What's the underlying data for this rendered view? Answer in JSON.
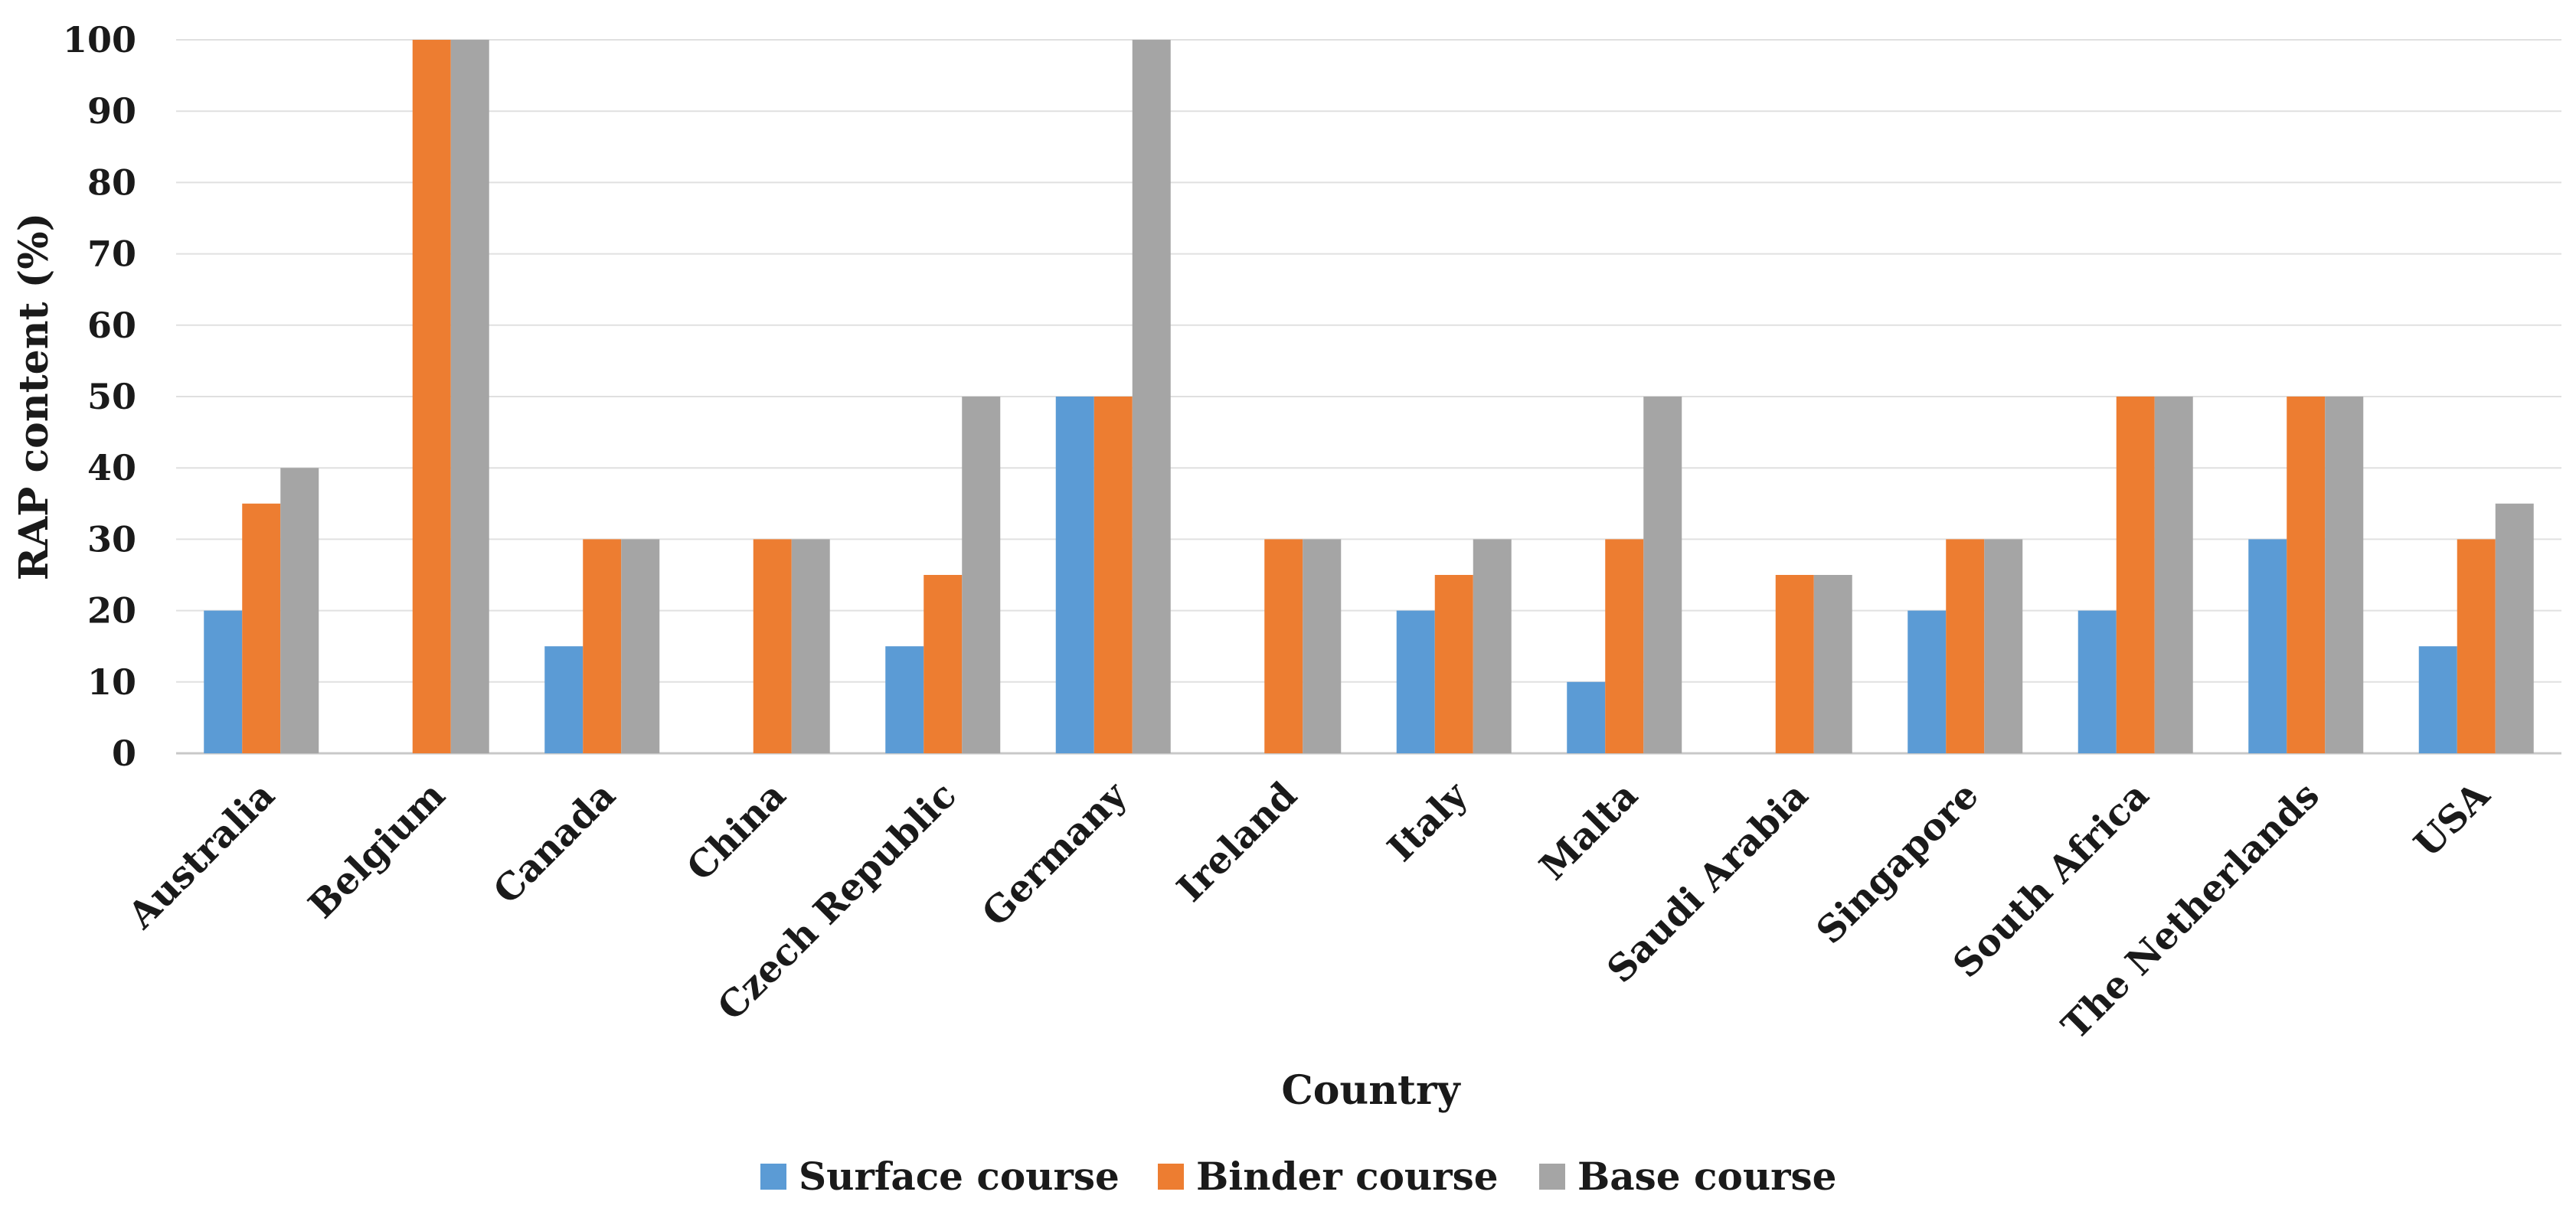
{
  "chart_data": {
    "type": "bar",
    "title": "",
    "xlabel": "Country",
    "ylabel": "RAP content (%)",
    "ylim": [
      0,
      100
    ],
    "yticks": [
      0,
      10,
      20,
      30,
      40,
      50,
      60,
      70,
      80,
      90,
      100
    ],
    "grid": true,
    "legend_position": "bottom",
    "categories": [
      "Australia",
      "Belgium",
      "Canada",
      "China",
      "Czech Republic",
      "Germany",
      "Ireland",
      "Italy",
      "Malta",
      "Saudi Arabia",
      "Singapore",
      "South Africa",
      "The Netherlands",
      "USA"
    ],
    "series": [
      {
        "name": "Surface course",
        "color": "#5b9bd5",
        "values": [
          20,
          0,
          15,
          0,
          15,
          50,
          0,
          20,
          10,
          0,
          20,
          20,
          30,
          15
        ]
      },
      {
        "name": "Binder course",
        "color": "#ed7d31",
        "values": [
          35,
          100,
          30,
          30,
          25,
          50,
          30,
          25,
          30,
          25,
          30,
          50,
          50,
          30
        ]
      },
      {
        "name": "Base course",
        "color": "#a5a5a5",
        "values": [
          40,
          100,
          30,
          30,
          50,
          100,
          30,
          30,
          50,
          25,
          30,
          50,
          50,
          35
        ]
      }
    ]
  }
}
